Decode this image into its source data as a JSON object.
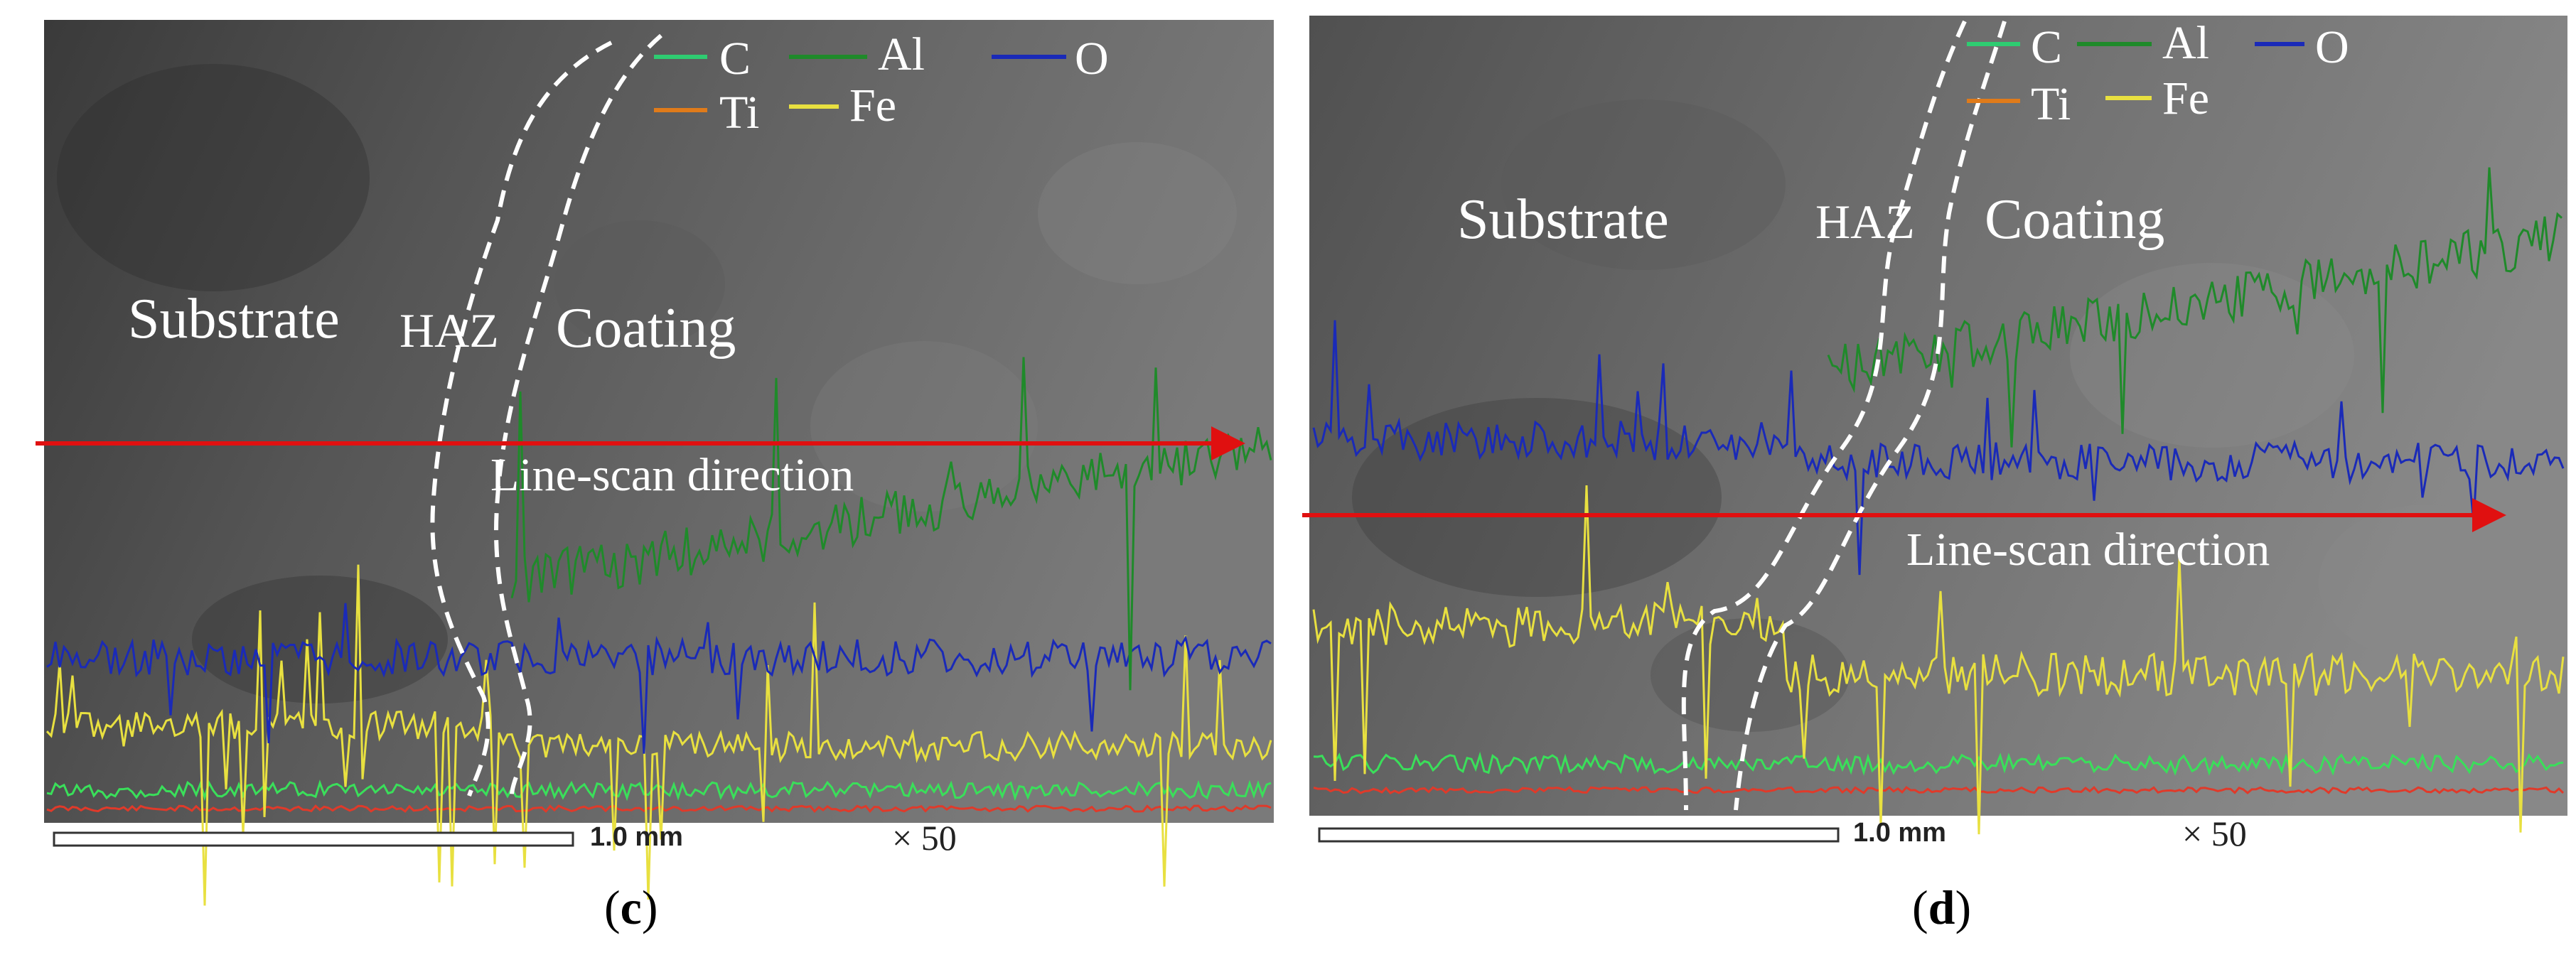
{
  "figure": {
    "panels": [
      {
        "id": "c",
        "caption_label": "c",
        "labels": {
          "substrate": "Substrate",
          "haz": "HAZ",
          "coating": "Coating",
          "direction": "Line-scan direction"
        },
        "scale_bar": "1.0 mm",
        "magnification": "× 50",
        "legend": [
          {
            "name": "C",
            "color": "#2ecc71"
          },
          {
            "name": "Al",
            "color": "#1f8a2a"
          },
          {
            "name": "O",
            "color": "#1a2ab8"
          },
          {
            "name": "Ti",
            "color": "#e07b1a"
          },
          {
            "name": "Fe",
            "color": "#e8e040"
          }
        ]
      },
      {
        "id": "d",
        "caption_label": "d",
        "labels": {
          "substrate": "Substrate",
          "haz": "HAZ",
          "coating": "Coating",
          "direction": "Line-scan direction"
        },
        "scale_bar": "1.0 mm",
        "magnification": "× 50",
        "legend": [
          {
            "name": "C",
            "color": "#2ecc71"
          },
          {
            "name": "Al",
            "color": "#1f8a2a"
          },
          {
            "name": "O",
            "color": "#1a2ab8"
          },
          {
            "name": "Ti",
            "color": "#e07b1a"
          },
          {
            "name": "Fe",
            "color": "#e8e040"
          }
        ]
      }
    ]
  }
}
